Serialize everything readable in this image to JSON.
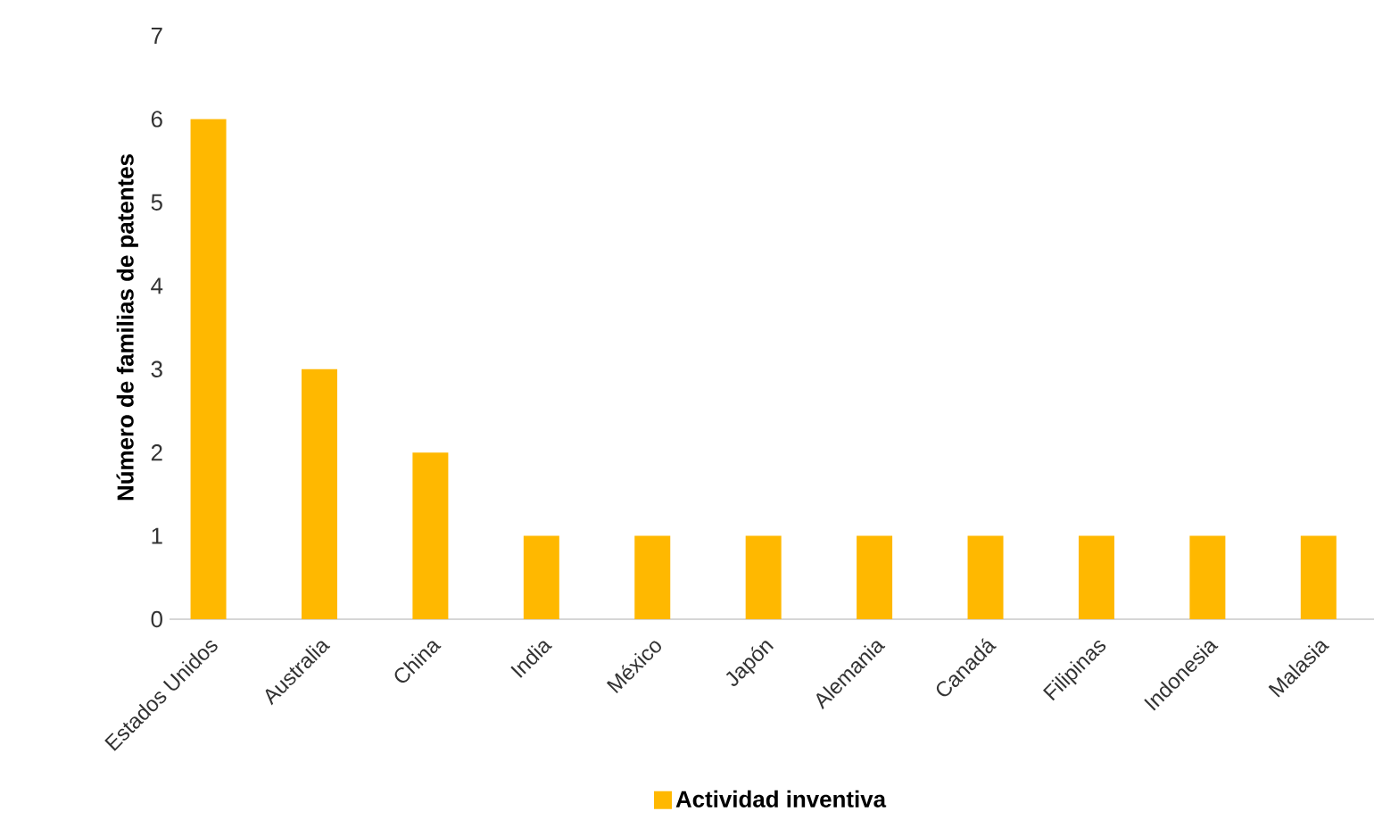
{
  "chart_data": {
    "type": "bar",
    "categories": [
      "Estados Unidos",
      "Australia",
      "China",
      "India",
      "México",
      "Japón",
      "Alemania",
      "Canadá",
      "Filipinas",
      "Indonesia",
      "Malasia"
    ],
    "series": [
      {
        "name": "Actividad inventiva",
        "color": "#ffb800",
        "values": [
          6,
          3,
          2,
          1,
          1,
          1,
          1,
          1,
          1,
          1,
          1
        ]
      }
    ],
    "ylabel": "Número de familias de patentes",
    "ylim": [
      0,
      7
    ],
    "yticks": [
      0,
      1,
      2,
      3,
      4,
      5,
      6,
      7
    ],
    "legend": "bottom"
  }
}
